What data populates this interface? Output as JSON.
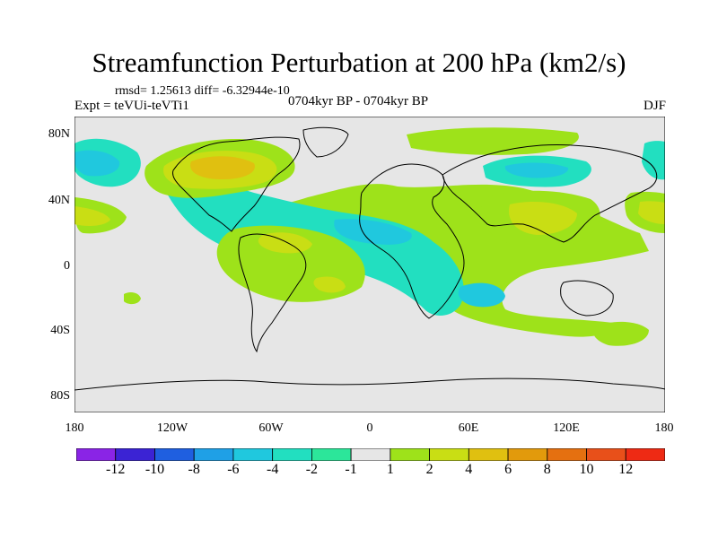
{
  "title": "Streamfunction Perturbation at 200 hPa (km2/s)",
  "stats": "rmsd= 1.25613 diff= -6.32944e-10",
  "expt": "Expt = teVUi-teVTi1",
  "period": "0704kyr BP - 0704kyr BP",
  "season": "DJF",
  "lat_labels": [
    "80N",
    "40N",
    "0",
    "40S",
    "80S"
  ],
  "lon_labels": [
    "180",
    "120W",
    "60W",
    "0",
    "60E",
    "120E",
    "180"
  ],
  "colorbar": {
    "colors": [
      "#8a24e6",
      "#3b23d4",
      "#1f5fe0",
      "#1fa0e6",
      "#20c8de",
      "#22dfc0",
      "#2ce69a",
      "#e6e6e6",
      "#9ee21a",
      "#c9de14",
      "#e0c010",
      "#e29a0c",
      "#e57010",
      "#e8501a",
      "#ee2a14"
    ],
    "labels": [
      "-12",
      "-10",
      "-8",
      "-6",
      "-4",
      "-2",
      "-1",
      "1",
      "2",
      "4",
      "6",
      "8",
      "10",
      "12"
    ]
  }
}
